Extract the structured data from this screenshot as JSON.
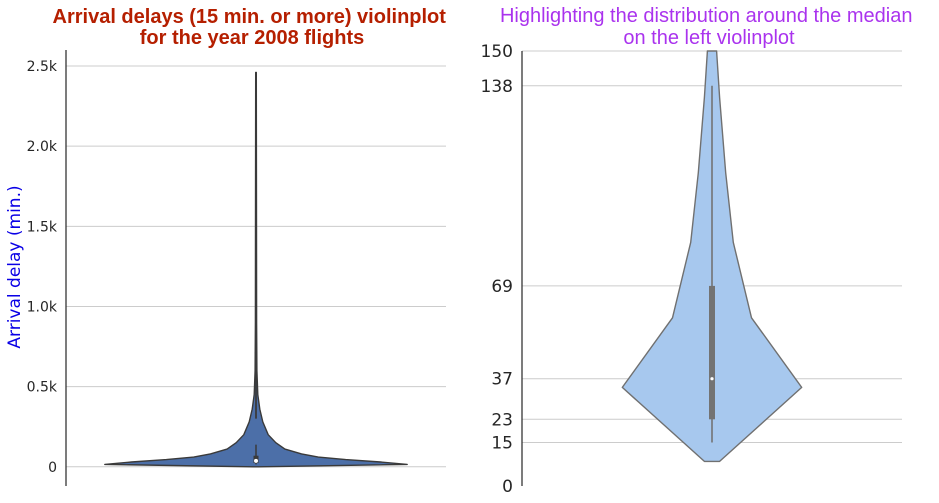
{
  "chart_data": [
    {
      "type": "violin",
      "title": "Arrival delays (15 min. or more) violinplot\nfor the year 2008 flights",
      "ylabel": "Arrival delay (min.)",
      "xlabel": "",
      "ylim": [
        -120,
        2600
      ],
      "yticks": [
        0,
        500,
        1000,
        1500,
        2000,
        2500
      ],
      "ytick_labels": [
        "0",
        "0.5k",
        "1.0k",
        "1.5k",
        "2.0k",
        "2.5k"
      ],
      "grid": "horizontal",
      "box": {
        "min": 15,
        "q1": 23,
        "median": 37,
        "q3": 69,
        "whisker_high": 138
      },
      "data_max": 2460,
      "profile": [
        [
          0,
          0.02
        ],
        [
          15,
          0.995
        ],
        [
          30,
          0.82
        ],
        [
          45,
          0.59
        ],
        [
          60,
          0.41
        ],
        [
          80,
          0.3
        ],
        [
          110,
          0.19
        ],
        [
          150,
          0.13
        ],
        [
          200,
          0.08
        ],
        [
          280,
          0.045
        ],
        [
          360,
          0.025
        ],
        [
          450,
          0.012
        ],
        [
          600,
          0.006
        ],
        [
          900,
          0.004
        ],
        [
          1500,
          0.003
        ],
        [
          2460,
          0.002
        ]
      ]
    },
    {
      "type": "violin",
      "title": "Highlighting the distribution around the median\non the left violinplot",
      "ylabel": "",
      "xlabel": "",
      "ylim": [
        0,
        150
      ],
      "yticks": [
        0,
        15,
        23,
        37,
        69,
        138,
        150
      ],
      "ytick_labels": [
        "0",
        "15",
        "23",
        "37",
        "69",
        "138",
        "150"
      ],
      "grid": "horizontal",
      "box": {
        "min": 15,
        "q1": 23,
        "median": 37,
        "q3": 69,
        "whisker_high": 138
      },
      "profile": [
        [
          8.5,
          0.05
        ],
        [
          34,
          0.59
        ],
        [
          58,
          0.26
        ],
        [
          84,
          0.14
        ],
        [
          108,
          0.09
        ],
        [
          134,
          0.05
        ],
        [
          150,
          0.03
        ]
      ]
    }
  ],
  "colors": {
    "left_title": "#b51f00",
    "left_ylabel": "#0a00e6",
    "left_violin": "#4c6fa8",
    "right_title": "#aa33ee",
    "right_violin": "#a7c8ee",
    "outline": "#707070"
  }
}
